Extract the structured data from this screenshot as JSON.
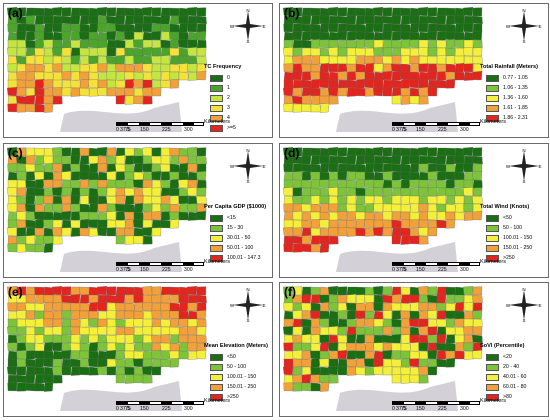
{
  "panels": [
    {
      "id": "a",
      "label": "(a)",
      "legend_title": "TC Frequency",
      "legend": [
        {
          "text": "0",
          "color": "#1a6e14"
        },
        {
          "text": "1",
          "color": "#4aa52a"
        },
        {
          "text": "2",
          "color": "#c5e640"
        },
        {
          "text": "3",
          "color": "#f4e23a"
        },
        {
          "text": "4",
          "color": "#f2a03a"
        },
        {
          "text": ">=5",
          "color": "#e2261f"
        }
      ]
    },
    {
      "id": "b",
      "label": "(b)",
      "legend_title": "Total Rainfall (Meters)",
      "legend": [
        {
          "text": "0.77 - 1.05",
          "color": "#1a6e14"
        },
        {
          "text": "1.06 - 1.35",
          "color": "#7ec43a"
        },
        {
          "text": "1.36 - 1.60",
          "color": "#f4f03a"
        },
        {
          "text": "1.61 - 1.85",
          "color": "#f2a03a"
        },
        {
          "text": "1.86 - 2.31",
          "color": "#e2261f"
        }
      ]
    },
    {
      "id": "c",
      "label": "(c)",
      "legend_title": "Per Capita GDP ($1000)",
      "legend": [
        {
          "text": "<15",
          "color": "#1a6e14"
        },
        {
          "text": "15 - 30",
          "color": "#7ec43a"
        },
        {
          "text": "30.01 - 50",
          "color": "#f4f03a"
        },
        {
          "text": "50.01 - 100",
          "color": "#f2a03a"
        },
        {
          "text": "100.01 - 147.3",
          "color": "#e2261f"
        }
      ]
    },
    {
      "id": "d",
      "label": "(d)",
      "legend_title": "Total Wind (Knots)",
      "legend": [
        {
          "text": "<50",
          "color": "#1a6e14"
        },
        {
          "text": "50 - 100",
          "color": "#7ec43a"
        },
        {
          "text": "100.01 - 150",
          "color": "#f4f03a"
        },
        {
          "text": "150.01 - 250",
          "color": "#f2a03a"
        },
        {
          "text": ">250",
          "color": "#e2261f"
        }
      ]
    },
    {
      "id": "e",
      "label": "(e)",
      "legend_title": "Mean Elevation (Meters)",
      "legend": [
        {
          "text": "<50",
          "color": "#1a6e14"
        },
        {
          "text": "50 - 100",
          "color": "#7ec43a"
        },
        {
          "text": "100.01 - 150",
          "color": "#f4f03a"
        },
        {
          "text": "150.01 - 250",
          "color": "#f2a03a"
        },
        {
          "text": ">250",
          "color": "#e2261f"
        }
      ]
    },
    {
      "id": "f",
      "label": "(f)",
      "legend_title": "SoVI (Percentile)",
      "legend": [
        {
          "text": "<20",
          "color": "#1a6e14"
        },
        {
          "text": "20 - 40",
          "color": "#7ec43a"
        },
        {
          "text": "40.01 - 60",
          "color": "#f4f03a"
        },
        {
          "text": "60.01 - 80",
          "color": "#f2a03a"
        },
        {
          "text": ">80",
          "color": "#e2261f"
        }
      ]
    }
  ],
  "scale_bar": {
    "unit": "Kilometers",
    "ticks": [
      "0",
      "37.5",
      "75",
      "150",
      "225",
      "300"
    ]
  },
  "compass": {
    "letters": [
      "N",
      "S",
      "E",
      "W"
    ]
  },
  "colors": {
    "gulf": "#d4d0d8",
    "outside": "#ffffff",
    "border": "#666666"
  }
}
